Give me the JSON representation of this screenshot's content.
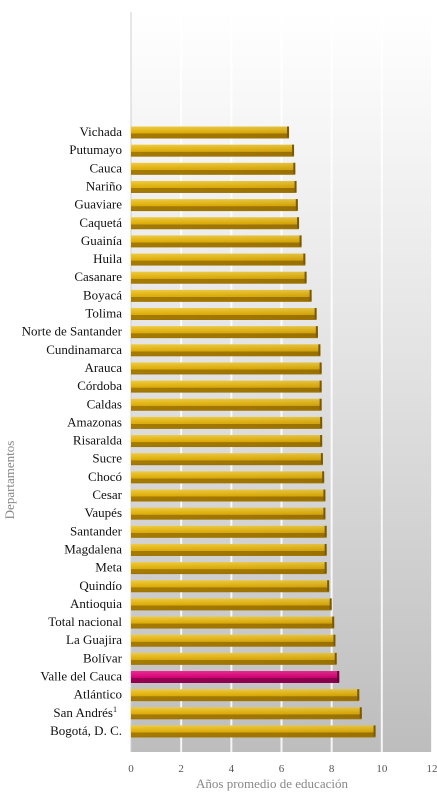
{
  "chart_data": {
    "type": "bar",
    "orientation": "horizontal",
    "xlabel": "Años promedio de educación",
    "ylabel": "Departamentos",
    "xlim": [
      0,
      12
    ],
    "xticks": [
      0,
      2,
      4,
      6,
      8,
      10,
      12
    ],
    "grid": true,
    "colors": {
      "bar": "#E8B400",
      "highlight": "#E0007A",
      "axis_text": "#555555",
      "title_text": "#888888"
    },
    "highlight": "Valle del Cauca",
    "categories": [
      "Vichada",
      "Putumayo",
      "Cauca",
      "Nariño",
      "Guaviare",
      "Caquetá",
      "Guainía",
      "Huila",
      "Casanare",
      "Boyacá",
      "Tolima",
      "Norte de Santander",
      "Cundinamarca",
      "Arauca",
      "Córdoba",
      "Caldas",
      "Amazonas",
      "Risaralda",
      "Sucre",
      "Chocó",
      "Cesar",
      "Vaupés",
      "Santander",
      "Magdalena",
      "Meta",
      "Quindío",
      "Antioquia",
      "Total nacional",
      "La Guajira",
      "Bolívar",
      "Valle del Cauca",
      "Atlántico",
      "San Andrés",
      "Bogotá, D. C."
    ],
    "category_superscripts": {
      "San Andrés": "1"
    },
    "values": [
      6.3,
      6.5,
      6.55,
      6.6,
      6.65,
      6.7,
      6.8,
      6.95,
      7.0,
      7.2,
      7.4,
      7.45,
      7.55,
      7.6,
      7.6,
      7.6,
      7.62,
      7.62,
      7.65,
      7.7,
      7.75,
      7.75,
      7.8,
      7.8,
      7.8,
      7.9,
      8.0,
      8.1,
      8.15,
      8.2,
      8.3,
      9.1,
      9.2,
      9.75
    ]
  }
}
